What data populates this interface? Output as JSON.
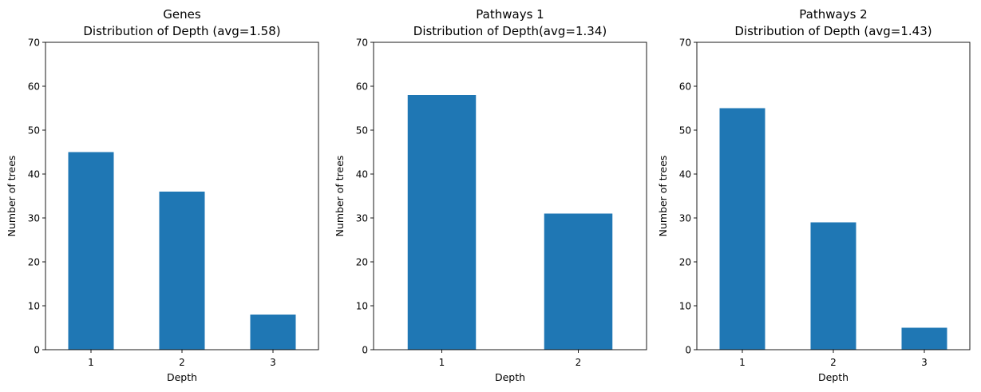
{
  "chart_data": [
    {
      "type": "bar",
      "title_lines": [
        "Genes",
        "Distribution of Depth (avg=1.58)"
      ],
      "categories": [
        "1",
        "2",
        "3"
      ],
      "values": [
        45,
        36,
        8
      ],
      "xlabel": "Depth",
      "ylabel": "Number of trees",
      "ylim": [
        0,
        70
      ],
      "yticks": [
        "0",
        "10",
        "20",
        "30",
        "40",
        "50",
        "60",
        "70"
      ],
      "bar_color": "#1f77b4",
      "grid": false
    },
    {
      "type": "bar",
      "title_lines": [
        "Pathways 1",
        "Distribution of Depth(avg=1.34)"
      ],
      "categories": [
        "1",
        "2"
      ],
      "values": [
        58,
        31
      ],
      "xlabel": "Depth",
      "ylabel": "Number of trees",
      "ylim": [
        0,
        70
      ],
      "yticks": [
        "0",
        "10",
        "20",
        "30",
        "40",
        "50",
        "60",
        "70"
      ],
      "bar_color": "#1f77b4",
      "grid": false
    },
    {
      "type": "bar",
      "title_lines": [
        "Pathways 2",
        "Distribution of Depth (avg=1.43)"
      ],
      "categories": [
        "1",
        "2",
        "3"
      ],
      "values": [
        55,
        29,
        5
      ],
      "xlabel": "Depth",
      "ylabel": "Number of trees",
      "ylim": [
        0,
        70
      ],
      "yticks": [
        "0",
        "10",
        "20",
        "30",
        "40",
        "50",
        "60",
        "70"
      ],
      "bar_color": "#1f77b4",
      "grid": false
    }
  ]
}
